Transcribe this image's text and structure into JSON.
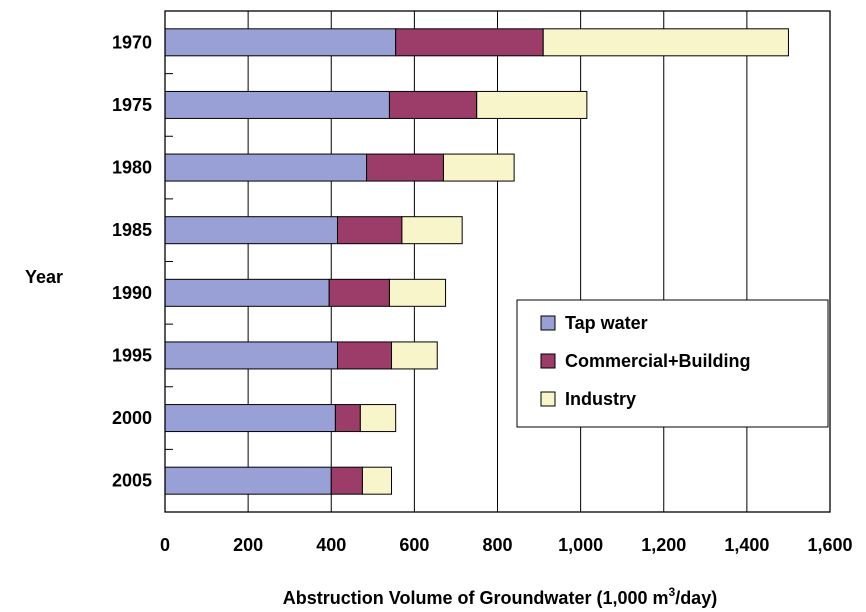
{
  "chart_data": {
    "type": "bar",
    "orientation": "horizontal",
    "stacked": true,
    "categories": [
      "1970",
      "1975",
      "1980",
      "1985",
      "1990",
      "1995",
      "2000",
      "2005"
    ],
    "series": [
      {
        "name": "Tap water",
        "color": "#99a0d6",
        "values": [
          555,
          540,
          485,
          415,
          395,
          415,
          410,
          400
        ]
      },
      {
        "name": "Commercial+Building",
        "color": "#9b3d68",
        "values": [
          355,
          210,
          185,
          155,
          145,
          130,
          60,
          75
        ]
      },
      {
        "name": "Industry",
        "color": "#f7f5c9",
        "values": [
          590,
          265,
          170,
          145,
          135,
          110,
          85,
          70
        ]
      }
    ],
    "xlim": [
      0,
      1600
    ],
    "xticks": [
      0,
      200,
      400,
      600,
      800,
      1000,
      1200,
      1400,
      1600
    ],
    "xtick_labels": [
      "0",
      "200",
      "400",
      "600",
      "800",
      "1,000",
      "1,200",
      "1,400",
      "1,600"
    ],
    "xlabel_main": "Abstruction Volume of Groundwater (1,000 m",
    "xlabel_sup": "3",
    "xlabel_end": "/day)",
    "ylabel": "Year",
    "grid": "vertical",
    "legend_placement": "right-middle"
  }
}
